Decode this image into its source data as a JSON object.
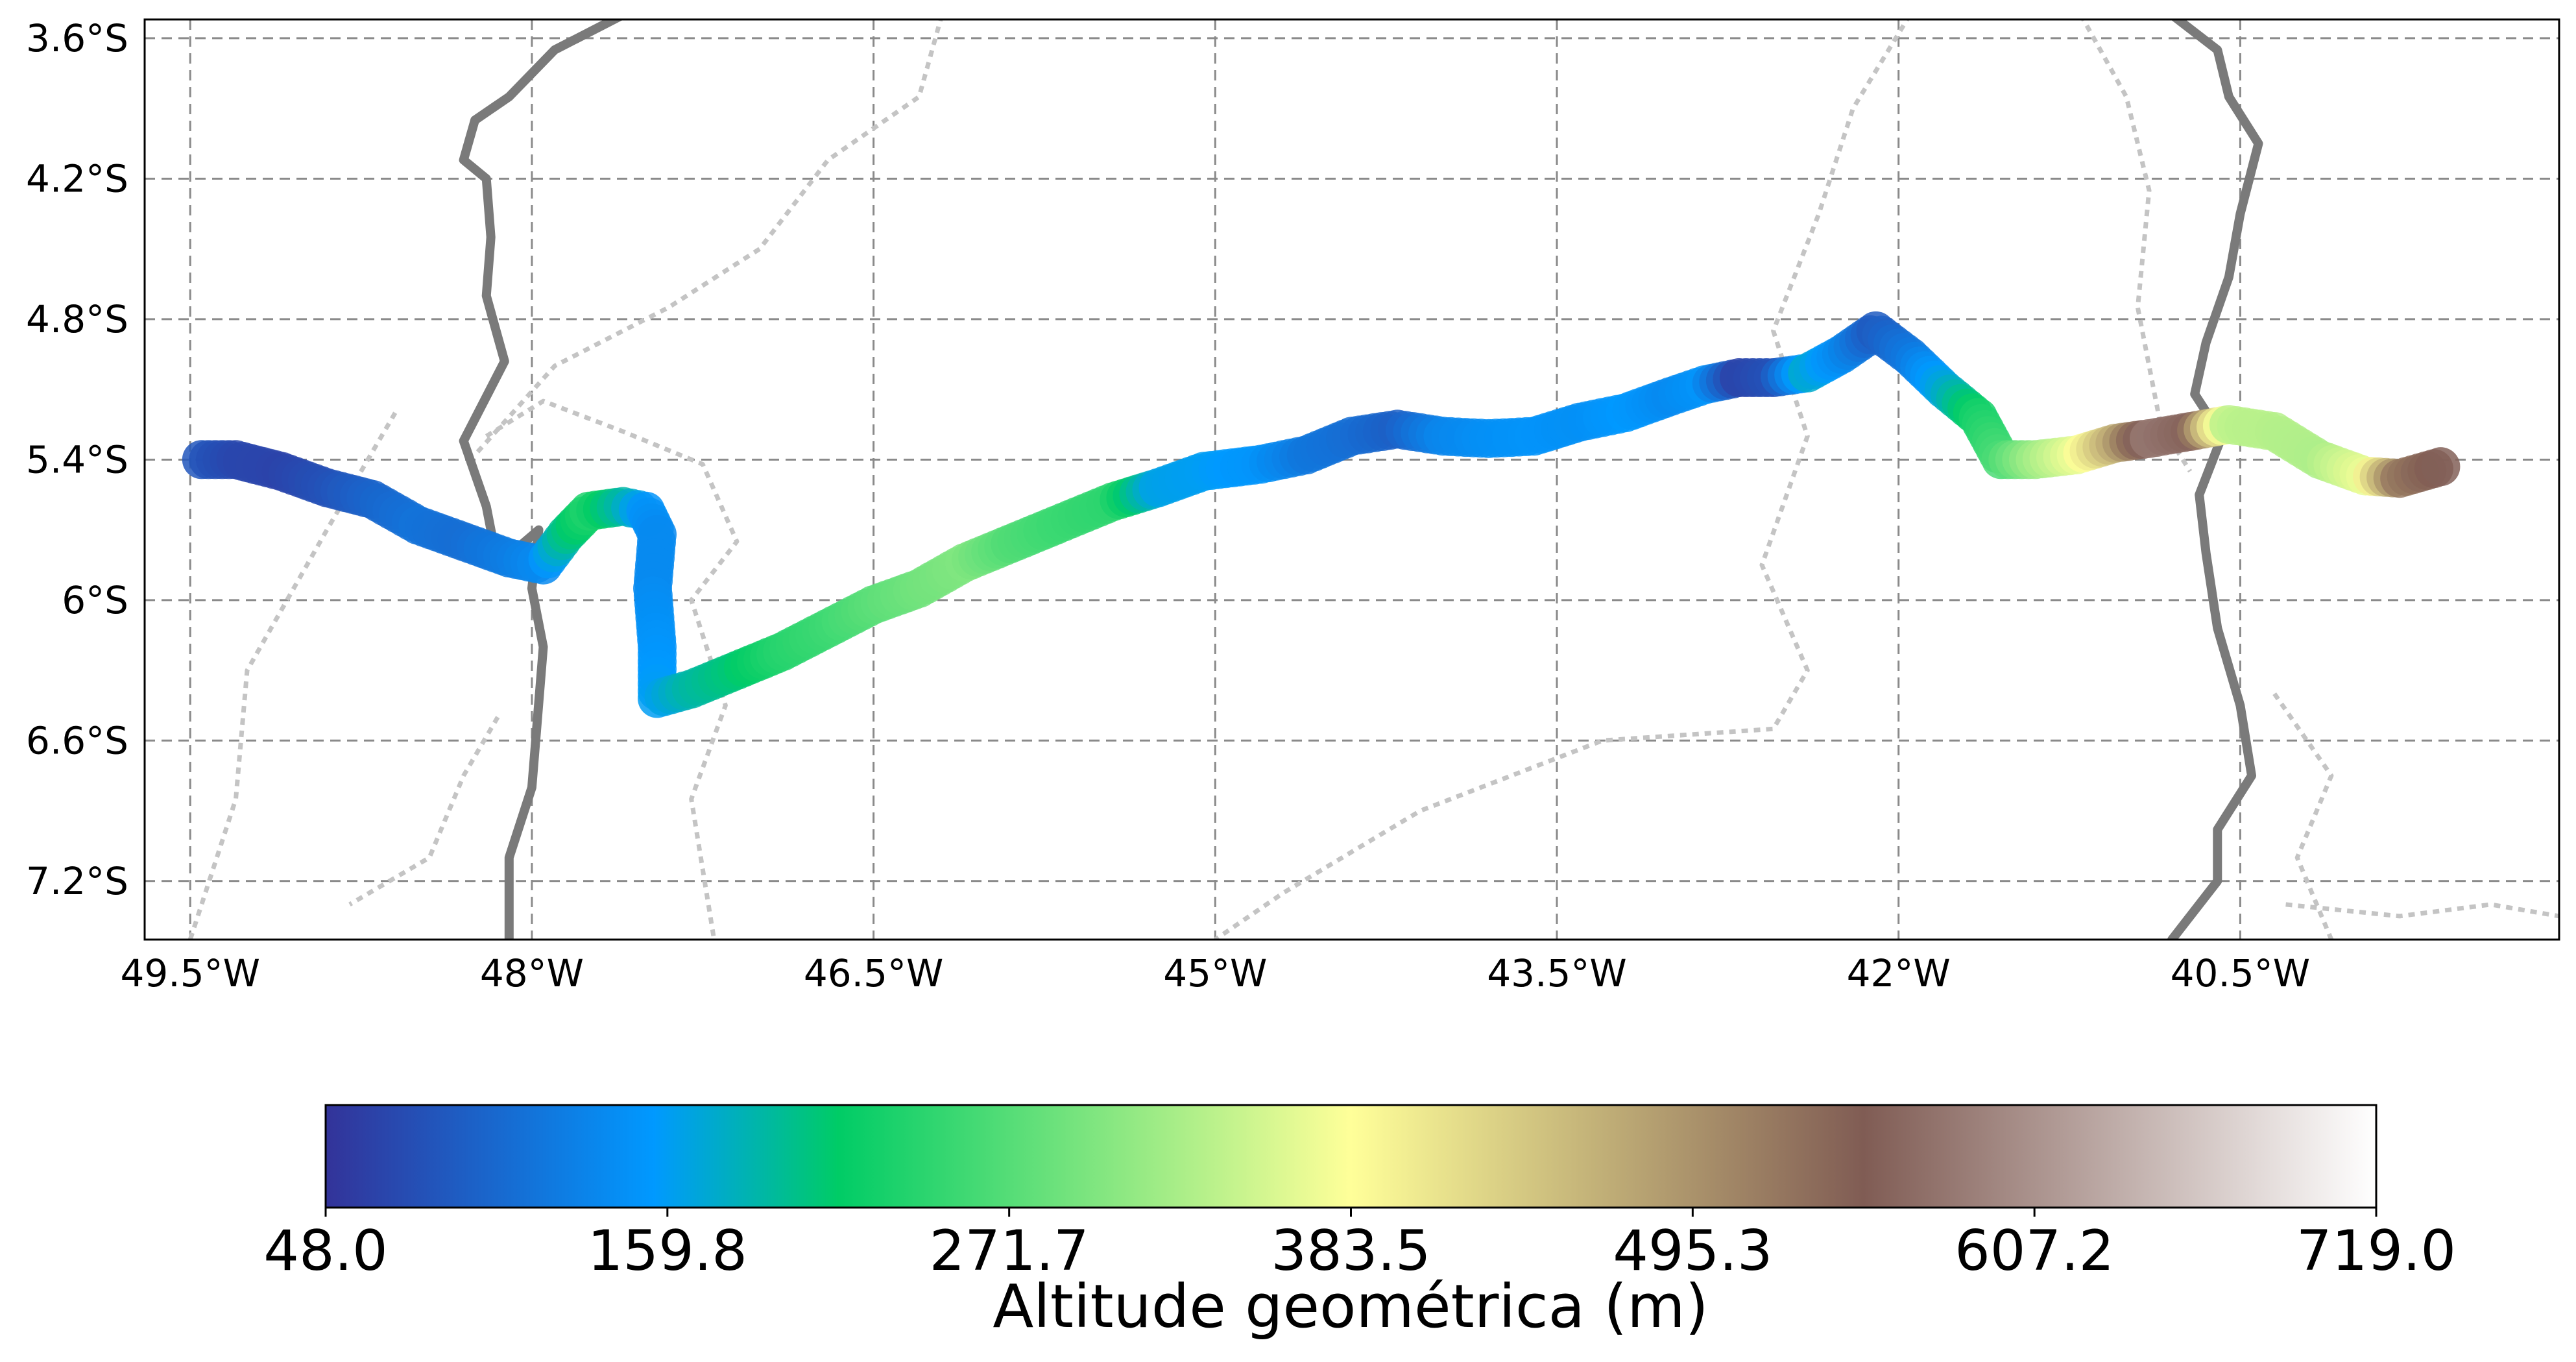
{
  "map": {
    "projection": "PlateCarree",
    "extent": {
      "lon_min": -49.7,
      "lon_max": -39.1,
      "lat_min": -7.45,
      "lat_max": -3.52
    },
    "gridlines": {
      "style": "dashed",
      "color": "#8a8a8a"
    },
    "x_ticks": [
      {
        "value": -49.5,
        "label": "49.5°W"
      },
      {
        "value": -48.0,
        "label": "48°W"
      },
      {
        "value": -46.5,
        "label": "46.5°W"
      },
      {
        "value": -45.0,
        "label": "45°W"
      },
      {
        "value": -43.5,
        "label": "43.5°W"
      },
      {
        "value": -42.0,
        "label": "42°W"
      },
      {
        "value": -40.5,
        "label": "40.5°W"
      }
    ],
    "y_ticks": [
      {
        "value": -3.6,
        "label": "3.6°S"
      },
      {
        "value": -4.2,
        "label": "4.2°S"
      },
      {
        "value": -4.8,
        "label": "4.8°S"
      },
      {
        "value": -5.4,
        "label": "5.4°S"
      },
      {
        "value": -6.0,
        "label": "6°S"
      },
      {
        "value": -6.6,
        "label": "6.6°S"
      },
      {
        "value": -7.2,
        "label": "7.2°S"
      }
    ]
  },
  "boundaries": {
    "state_lines": [
      [
        [
          -47.6,
          -3.5
        ],
        [
          -47.9,
          -3.65
        ],
        [
          -48.1,
          -3.85
        ],
        [
          -48.25,
          -3.95
        ],
        [
          -48.3,
          -4.12
        ],
        [
          -48.2,
          -4.2
        ],
        [
          -48.18,
          -4.45
        ],
        [
          -48.2,
          -4.7
        ],
        [
          -48.12,
          -4.98
        ],
        [
          -48.3,
          -5.32
        ],
        [
          -48.2,
          -5.6
        ],
        [
          -48.15,
          -5.85
        ],
        [
          -47.97,
          -5.7
        ],
        [
          -48.0,
          -5.95
        ],
        [
          -47.95,
          -6.2
        ],
        [
          -48.0,
          -6.8
        ],
        [
          -48.1,
          -7.1
        ],
        [
          -48.1,
          -7.45
        ]
      ],
      [
        [
          -40.8,
          -3.5
        ],
        [
          -40.6,
          -3.65
        ],
        [
          -40.55,
          -3.85
        ],
        [
          -40.42,
          -4.05
        ],
        [
          -40.5,
          -4.35
        ],
        [
          -40.55,
          -4.62
        ],
        [
          -40.65,
          -4.9
        ],
        [
          -40.7,
          -5.12
        ],
        [
          -40.58,
          -5.3
        ],
        [
          -40.68,
          -5.55
        ],
        [
          -40.65,
          -5.8
        ],
        [
          -40.6,
          -6.12
        ],
        [
          -40.5,
          -6.45
        ],
        [
          -40.45,
          -6.75
        ],
        [
          -40.6,
          -6.98
        ],
        [
          -40.6,
          -7.2
        ],
        [
          -40.8,
          -7.45
        ]
      ]
    ],
    "dotted_lines": [
      [
        [
          -46.2,
          -3.5
        ],
        [
          -46.3,
          -3.85
        ],
        [
          -46.7,
          -4.12
        ],
        [
          -47.0,
          -4.5
        ],
        [
          -47.4,
          -4.75
        ],
        [
          -47.9,
          -5.0
        ],
        [
          -48.25,
          -5.38
        ]
      ],
      [
        [
          -48.2,
          -5.3
        ],
        [
          -47.95,
          -5.15
        ],
        [
          -47.6,
          -5.28
        ],
        [
          -47.25,
          -5.42
        ],
        [
          -47.1,
          -5.75
        ],
        [
          -47.3,
          -6.0
        ],
        [
          -47.15,
          -6.45
        ],
        [
          -47.3,
          -6.85
        ],
        [
          -47.2,
          -7.45
        ]
      ],
      [
        [
          -48.6,
          -5.2
        ],
        [
          -48.9,
          -5.7
        ],
        [
          -49.25,
          -6.3
        ],
        [
          -49.3,
          -6.85
        ],
        [
          -49.5,
          -7.45
        ]
      ],
      [
        [
          -48.15,
          -6.5
        ],
        [
          -48.3,
          -6.75
        ],
        [
          -48.45,
          -7.1
        ],
        [
          -48.8,
          -7.3
        ]
      ],
      [
        [
          -41.95,
          -3.5
        ],
        [
          -42.2,
          -3.9
        ],
        [
          -42.35,
          -4.35
        ],
        [
          -42.55,
          -4.85
        ],
        [
          -42.4,
          -5.3
        ],
        [
          -42.6,
          -5.85
        ],
        [
          -42.4,
          -6.3
        ],
        [
          -42.55,
          -6.55
        ],
        [
          -43.3,
          -6.6
        ],
        [
          -44.1,
          -6.9
        ],
        [
          -44.7,
          -7.25
        ],
        [
          -45.0,
          -7.45
        ]
      ],
      [
        [
          -41.2,
          -3.5
        ],
        [
          -41.0,
          -3.85
        ],
        [
          -40.9,
          -4.25
        ],
        [
          -40.95,
          -4.75
        ],
        [
          -40.85,
          -5.25
        ],
        [
          -40.72,
          -5.45
        ]
      ],
      [
        [
          -40.35,
          -6.4
        ],
        [
          -40.1,
          -6.75
        ],
        [
          -40.25,
          -7.1
        ],
        [
          -40.1,
          -7.45
        ]
      ],
      [
        [
          -40.3,
          -7.3
        ],
        [
          -39.8,
          -7.35
        ],
        [
          -39.4,
          -7.3
        ],
        [
          -39.1,
          -7.35
        ]
      ]
    ]
  },
  "track": {
    "units": "m",
    "points": [
      [
        -49.45,
        -5.4,
        85
      ],
      [
        -49.3,
        -5.4,
        70
      ],
      [
        -49.1,
        -5.45,
        65
      ],
      [
        -48.9,
        -5.52,
        80
      ],
      [
        -48.7,
        -5.57,
        100
      ],
      [
        -48.5,
        -5.68,
        115
      ],
      [
        -48.3,
        -5.75,
        110
      ],
      [
        -48.1,
        -5.82,
        125
      ],
      [
        -47.95,
        -5.85,
        140
      ],
      [
        -47.85,
        -5.72,
        200
      ],
      [
        -47.75,
        -5.62,
        235
      ],
      [
        -47.6,
        -5.6,
        190
      ],
      [
        -47.5,
        -5.62,
        150
      ],
      [
        -47.45,
        -5.72,
        140
      ],
      [
        -47.47,
        -5.95,
        140
      ],
      [
        -47.45,
        -6.2,
        150
      ],
      [
        -47.45,
        -6.42,
        160
      ],
      [
        -47.3,
        -6.38,
        190
      ],
      [
        -47.1,
        -6.3,
        210
      ],
      [
        -46.9,
        -6.22,
        240
      ],
      [
        -46.7,
        -6.12,
        255
      ],
      [
        -46.5,
        -6.02,
        275
      ],
      [
        -46.3,
        -5.95,
        290
      ],
      [
        -46.1,
        -5.84,
        300
      ],
      [
        -45.9,
        -5.76,
        270
      ],
      [
        -45.7,
        -5.68,
        255
      ],
      [
        -45.45,
        -5.58,
        245
      ],
      [
        -45.25,
        -5.52,
        165
      ],
      [
        -45.05,
        -5.45,
        160
      ],
      [
        -44.8,
        -5.42,
        150
      ],
      [
        -44.6,
        -5.38,
        120
      ],
      [
        -44.4,
        -5.3,
        110
      ],
      [
        -44.2,
        -5.27,
        95
      ],
      [
        -44.0,
        -5.3,
        135
      ],
      [
        -43.8,
        -5.31,
        145
      ],
      [
        -43.6,
        -5.3,
        150
      ],
      [
        -43.4,
        -5.24,
        145
      ],
      [
        -43.2,
        -5.2,
        155
      ],
      [
        -43.0,
        -5.13,
        140
      ],
      [
        -42.85,
        -5.08,
        150
      ],
      [
        -42.7,
        -5.05,
        65
      ],
      [
        -42.55,
        -5.05,
        80
      ],
      [
        -42.4,
        -5.03,
        175
      ],
      [
        -42.25,
        -4.95,
        140
      ],
      [
        -42.1,
        -4.85,
        90
      ],
      [
        -41.95,
        -4.96,
        120
      ],
      [
        -41.8,
        -5.1,
        170
      ],
      [
        -41.65,
        -5.22,
        230
      ],
      [
        -41.55,
        -5.4,
        265
      ],
      [
        -41.4,
        -5.4,
        320
      ],
      [
        -41.22,
        -5.38,
        370
      ],
      [
        -41.05,
        -5.33,
        470
      ],
      [
        -40.9,
        -5.31,
        580
      ],
      [
        -40.72,
        -5.28,
        560
      ],
      [
        -40.55,
        -5.25,
        340
      ],
      [
        -40.35,
        -5.28,
        335
      ],
      [
        -40.15,
        -5.4,
        330
      ],
      [
        -39.95,
        -5.47,
        370
      ],
      [
        -39.8,
        -5.48,
        520
      ],
      [
        -39.62,
        -5.43,
        555
      ]
    ]
  },
  "colorbar": {
    "label": "Altitude geométrica (m)",
    "min": 48.0,
    "max": 719.0,
    "ticks": [
      "48.0",
      "159.8",
      "271.7",
      "383.5",
      "495.3",
      "607.2",
      "719.0"
    ],
    "colormap": [
      "#333399",
      "#0099ff",
      "#00cc66",
      "#ffff99",
      "#805c54",
      "#ffffff"
    ]
  }
}
